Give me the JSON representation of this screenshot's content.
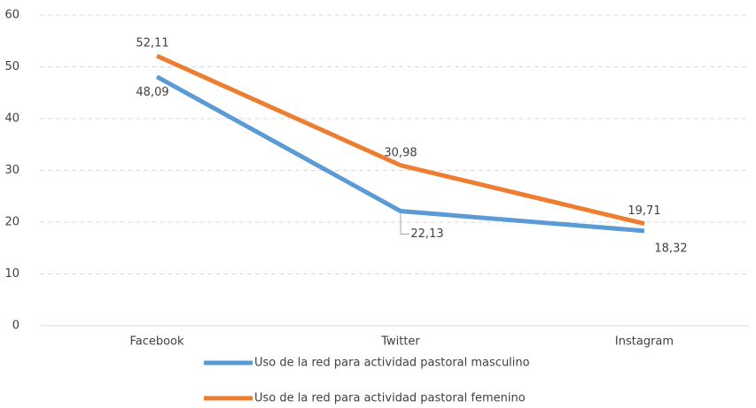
{
  "chart_data": {
    "type": "line",
    "categories": [
      "Facebook",
      "Twitter",
      "Instagram"
    ],
    "series": [
      {
        "name": "Uso de la red para actividad pastoral masculino",
        "color": "#5b9bd5",
        "values": [
          48.09,
          22.13,
          18.32
        ],
        "value_labels": [
          "48,09",
          "22,13",
          "18,32"
        ]
      },
      {
        "name": "Uso de la red para actividad pastoral femenino",
        "color": "#ed7d31",
        "values": [
          52.11,
          30.98,
          19.71
        ],
        "value_labels": [
          "52,11",
          "30,98",
          "19,71"
        ]
      }
    ],
    "ylim": [
      0,
      60
    ],
    "yticks": [
      0,
      10,
      20,
      30,
      40,
      50,
      60
    ],
    "grid": true,
    "legend": "bottom"
  }
}
